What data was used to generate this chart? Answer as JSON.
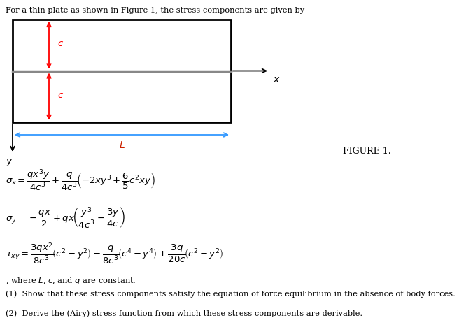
{
  "title_text": "For a thin plate as shown in Figure 1, the stress components are given by",
  "figure_label": "FIGURE 1.",
  "where_text": ", where $L$, $c$, and $q$ are constant.",
  "q1_text": "(1)  Show that these stress components satisfy the equation of force equilibrium in the absence of body forces.",
  "q2_text": "(2)  Derive the (Airy) stress function from which these stress components are derivable.",
  "bg_color": "#ffffff",
  "text_color": "#000000",
  "rect_color": "#000000",
  "arrow_color": "#ff0000",
  "mid_line_color": "#888888",
  "x_arrow_color": "#000000",
  "L_arrow_color": "#3399ff",
  "y_arrow_color": "#000000",
  "c_label_color": "#ff0000"
}
